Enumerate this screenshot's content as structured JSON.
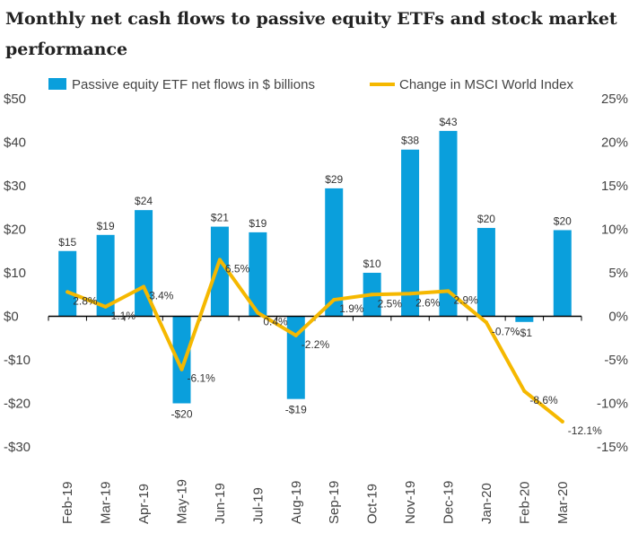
{
  "chart_data": {
    "type": "bar",
    "title": "Monthly net cash flows to passive equity ETFs and stock market performance",
    "categories": [
      "Feb-19",
      "Mar-19",
      "Apr-19",
      "May-19",
      "Jun-19",
      "Jul-19",
      "Aug-19",
      "Sep-19",
      "Oct-19",
      "Nov-19",
      "Dec-19",
      "Jan-20",
      "Feb-20",
      "Mar-20"
    ],
    "series": [
      {
        "name": "Passive equity ETF net flows in $ billions",
        "type": "bar",
        "axis": "left",
        "color": "#0a9fdc",
        "values": [
          15,
          18.7,
          24.4,
          -20,
          20.6,
          19.3,
          -19,
          29.4,
          10,
          38.3,
          42.6,
          20.3,
          -1.3,
          19.8
        ],
        "labels": [
          "$15",
          "$19",
          "$24",
          "-$20",
          "$21",
          "$19",
          "-$19",
          "$29",
          "$10",
          "$38",
          "$43",
          "$20",
          "-$1",
          "$20"
        ]
      },
      {
        "name": "Change in MSCI World Index",
        "type": "line",
        "axis": "right",
        "color": "#f5b800",
        "values": [
          2.8,
          1.1,
          3.4,
          -6.1,
          6.5,
          0.4,
          -2.2,
          1.9,
          2.5,
          2.6,
          2.9,
          -0.7,
          -8.6,
          -12.1
        ],
        "labels": [
          "2.8%",
          "1.1%",
          "3.4%",
          "-6.1%",
          "6.5%",
          "0.4%",
          "-2.2%",
          "1.9%",
          "2.5%",
          "2.6%",
          "2.9%",
          "-0.7%",
          "-8.6%",
          "-12.1%"
        ]
      }
    ],
    "yleft": {
      "lim": [
        -30,
        50
      ],
      "ticks": [
        50,
        40,
        30,
        20,
        10,
        0,
        -10,
        -20,
        -30
      ],
      "tick_labels": [
        "$50",
        "$40",
        "$30",
        "$20",
        "$10",
        "$0",
        "-$10",
        "-$20",
        "-$30"
      ]
    },
    "yright": {
      "lim": [
        -15,
        25
      ],
      "ticks": [
        25,
        20,
        15,
        10,
        5,
        0,
        -5,
        -10,
        -15
      ],
      "tick_labels": [
        "25%",
        "20%",
        "15%",
        "10%",
        "5%",
        "0%",
        "-5%",
        "-10%",
        "-15%"
      ]
    },
    "legend": "top",
    "grid": false
  }
}
